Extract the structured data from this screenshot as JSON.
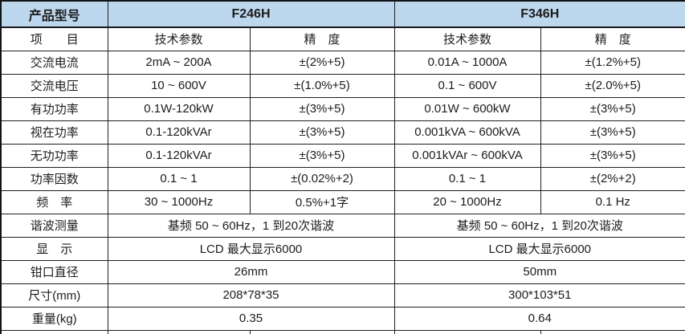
{
  "colors": {
    "header_bg": "#BDD7EE",
    "border": "#1f1f1f",
    "text": "#1c1c1c"
  },
  "table": {
    "header": {
      "product_model": "产品型号",
      "model_left": "F246H",
      "model_right": "F346H"
    },
    "subheader": [
      "项　　目",
      "技术参数",
      "精　度",
      "技术参数",
      "精　度"
    ],
    "rows": [
      [
        "交流电流",
        "2mA ~ 200A",
        "±(2%+5)",
        "0.01A ~ 1000A",
        "±(1.2%+5)"
      ],
      [
        "交流电压",
        "10 ~ 600V",
        "±(1.0%+5)",
        "0.1 ~ 600V",
        "±(2.0%+5)"
      ],
      [
        "有功功率",
        "0.1W-120kW",
        "±(3%+5)",
        "0.01W ~ 600kW",
        "±(3%+5)"
      ],
      [
        "视在功率",
        "0.1-120kVAr",
        "±(3%+5)",
        "0.001kVA ~ 600kVA",
        "±(3%+5)"
      ],
      [
        "无功功率",
        "0.1-120kVAr",
        "±(3%+5)",
        "0.001kVAr ~ 600kVA",
        "±(3%+5)"
      ],
      [
        "功率因数",
        "0.1 ~ 1",
        "±(0.02%+2)",
        "0.1 ~ 1",
        "±(2%+2)"
      ],
      [
        "频　率",
        "30 ~ 1000Hz",
        "0.5%+1字",
        "20 ~ 1000Hz",
        "0.1 Hz"
      ]
    ],
    "span_rows": [
      [
        "谐波测量",
        "基频 50 ~ 60Hz，1 到20次谐波",
        "基频 50 ~ 60Hz，1 到20次谐波"
      ],
      [
        "显　示",
        "LCD 最大显示6000",
        "LCD 最大显示6000"
      ],
      [
        "钳口直径",
        "26mm",
        "50mm"
      ],
      [
        "尺寸(mm)",
        "208*78*35",
        "300*103*51"
      ],
      [
        "重量(kg)",
        "0.35",
        "0.64"
      ]
    ]
  }
}
